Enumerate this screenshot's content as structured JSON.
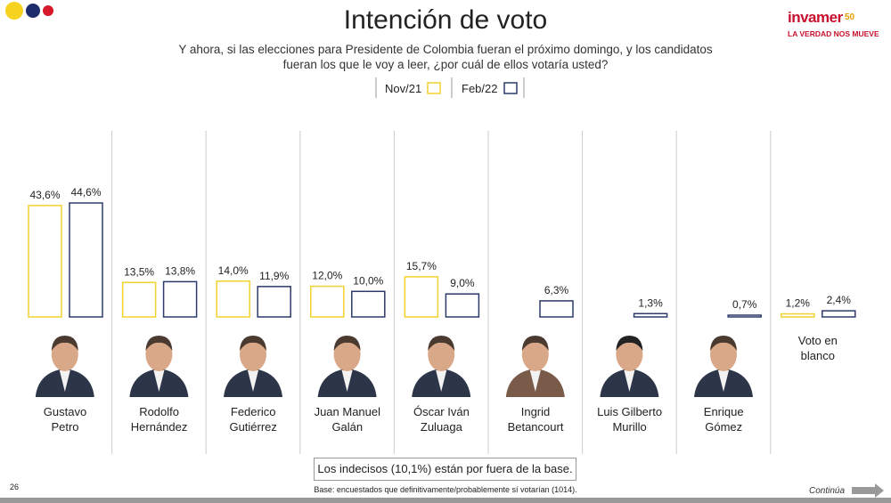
{
  "header": {
    "logo": "invamer",
    "logo_years": "50",
    "tagline": "LA VERDAD NOS MUEVE"
  },
  "chart_data": {
    "type": "bar",
    "title": "Intención de voto",
    "subtitle": "Y ahora, si las elecciones para Presidente de Colombia fueran el próximo domingo, y los candidatos\nfueran los que le voy a leer, ¿por cuál de ellos votaría usted?",
    "categories": [
      "Gustavo\nPetro",
      "Rodolfo\nHernández",
      "Federico\nGutiérrez",
      "Juan Manuel\nGalán",
      "Óscar Iván\nZuluaga",
      "Ingrid\nBetancourt",
      "Luis Gilberto\nMurillo",
      "Enrique\nGómez",
      "Voto en\nblanco"
    ],
    "series": [
      {
        "name": "Nov/21",
        "color": "#f2d230",
        "values": [
          43.6,
          13.5,
          14.0,
          12.0,
          15.7,
          null,
          null,
          null,
          1.2
        ],
        "value_labels": [
          "43,6%",
          "13,5%",
          "14,0%",
          "12,0%",
          "15,7%",
          null,
          null,
          null,
          "1,2%"
        ]
      },
      {
        "name": "Feb/22",
        "color": "#2b3a6b",
        "values": [
          44.6,
          13.8,
          11.9,
          10.0,
          9.0,
          6.3,
          1.3,
          0.7,
          2.4
        ],
        "value_labels": [
          "44,6%",
          "13,8%",
          "11,9%",
          "10,0%",
          "9,0%",
          "6,3%",
          "1,3%",
          "0,7%",
          "2,4%"
        ]
      }
    ],
    "note": "Los indecisos (10,1%) están por fuera de la base.",
    "base": "Base: encuestados que definitivamente/probablemente sí votarían (1014)."
  },
  "footer": {
    "page_number": "26",
    "continue_label": "Continúa"
  }
}
